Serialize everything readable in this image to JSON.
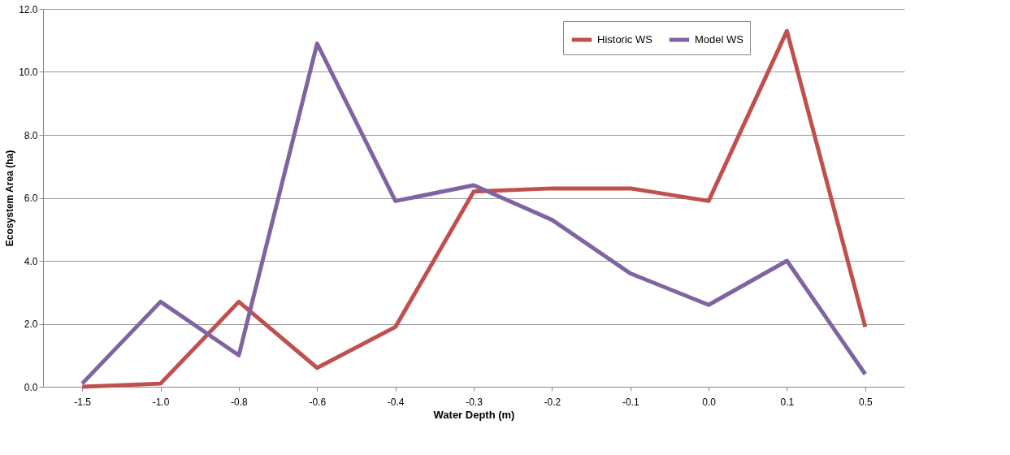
{
  "chart_data": {
    "type": "line",
    "xlabel": "Water Depth (m)",
    "ylabel": "Ecosystem Area (ha)",
    "categories": [
      "-1.5",
      "-1.0",
      "-0.8",
      "-0.6",
      "-0.4",
      "-0.3",
      "-0.2",
      "-0.1",
      "0.0",
      "0.1",
      "0.5"
    ],
    "series": [
      {
        "name": "Historic WS",
        "color": "#c0504d",
        "values": [
          0.0,
          0.1,
          2.7,
          0.6,
          1.9,
          6.2,
          6.3,
          6.3,
          5.9,
          11.3,
          1.9
        ]
      },
      {
        "name": "Model WS",
        "color": "#8064a2",
        "values": [
          0.1,
          2.7,
          1.0,
          10.9,
          5.9,
          6.4,
          5.3,
          3.6,
          2.6,
          4.0,
          0.4
        ]
      }
    ],
    "ylim": [
      0,
      12
    ],
    "yticks": [
      {
        "value": 0,
        "label": "0.0"
      },
      {
        "value": 2,
        "label": "2.0"
      },
      {
        "value": 4,
        "label": "4.0"
      },
      {
        "value": 6,
        "label": "6.0"
      },
      {
        "value": 8,
        "label": "8.0"
      },
      {
        "value": 10,
        "label": "10.0"
      },
      {
        "value": 12,
        "label": "12.0"
      }
    ],
    "grid": "y",
    "legend": "top right",
    "marker": "none",
    "line_style": "solid"
  }
}
